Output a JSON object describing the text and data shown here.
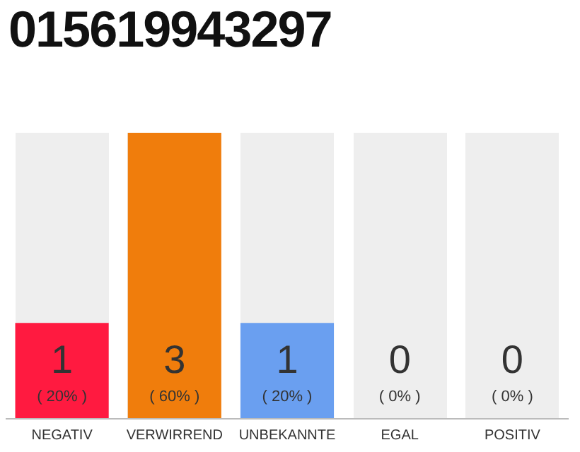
{
  "chart_data": {
    "type": "bar",
    "title": "015619943297",
    "categories": [
      "NEGATIV",
      "VERWIRREND",
      "UNBEKANNTE",
      "EGAL",
      "POSITIV"
    ],
    "values": [
      20,
      60,
      20,
      0,
      0
    ],
    "colors": [
      "#ff1a40",
      "#f07d0c",
      "#6a9ff0",
      "#999999",
      "#999999"
    ],
    "value_labels": [
      "( 20% )",
      "( 60% )",
      "( 20% )",
      "( 0% )",
      "( 0% )"
    ],
    "annotations": [
      "1",
      "3",
      "1",
      "0",
      "0"
    ],
    "grid": false,
    "legend": false
  }
}
